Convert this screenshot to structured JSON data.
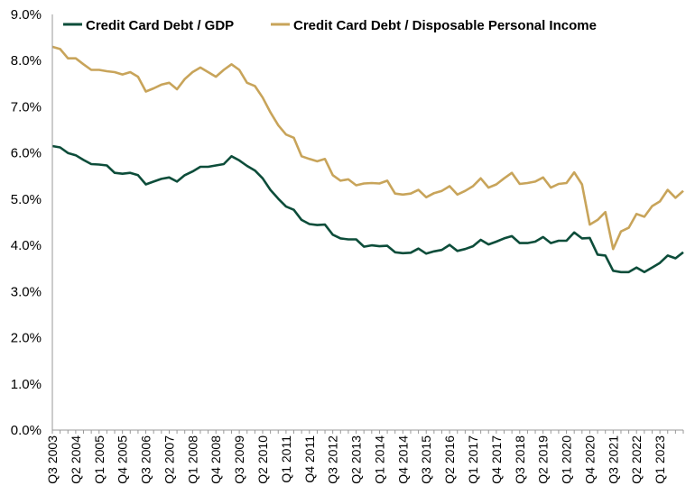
{
  "chart_data": {
    "type": "line",
    "title": "",
    "xlabel": "",
    "ylabel": "",
    "ylim": [
      0,
      9
    ],
    "y_ticks": [
      "0.0%",
      "1.0%",
      "2.0%",
      "3.0%",
      "4.0%",
      "5.0%",
      "6.0%",
      "7.0%",
      "8.0%",
      "9.0%"
    ],
    "x_start": "Q3 2003",
    "x_ticks": [
      {
        "q": 0,
        "label": "Q3 2003"
      },
      {
        "q": 3,
        "label": "Q2 2004"
      },
      {
        "q": 6,
        "label": "Q1 2005"
      },
      {
        "q": 9,
        "label": "Q4 2005"
      },
      {
        "q": 12,
        "label": "Q3 2006"
      },
      {
        "q": 15,
        "label": "Q2 2007"
      },
      {
        "q": 18,
        "label": "Q1 2008"
      },
      {
        "q": 21,
        "label": "Q4 2008"
      },
      {
        "q": 24,
        "label": "Q3 2009"
      },
      {
        "q": 27,
        "label": "Q2 2010"
      },
      {
        "q": 30,
        "label": "Q1 2011"
      },
      {
        "q": 33,
        "label": "Q4 2011"
      },
      {
        "q": 36,
        "label": "Q3 2012"
      },
      {
        "q": 39,
        "label": "Q2 2013"
      },
      {
        "q": 42,
        "label": "Q1 2014"
      },
      {
        "q": 45,
        "label": "Q4 2014"
      },
      {
        "q": 48,
        "label": "Q3 2015"
      },
      {
        "q": 51,
        "label": "Q2 2016"
      },
      {
        "q": 54,
        "label": "Q1 2017"
      },
      {
        "q": 57,
        "label": "Q4 2017"
      },
      {
        "q": 60,
        "label": "Q3 2018"
      },
      {
        "q": 63,
        "label": "Q2 2019"
      },
      {
        "q": 66,
        "label": "Q1 2020"
      },
      {
        "q": 69,
        "label": "Q4 2020"
      },
      {
        "q": 72,
        "label": "Q3 2021"
      },
      {
        "q": 75,
        "label": "Q2 2022"
      },
      {
        "q": 78,
        "label": "Q1 2023"
      }
    ],
    "legend": {
      "placement": "top"
    },
    "grid": false,
    "series": [
      {
        "name": "Credit Card Debt / GDP",
        "color": "#0d4d3a",
        "values": [
          6.15,
          6.12,
          6.0,
          5.95,
          5.85,
          5.76,
          5.75,
          5.73,
          5.57,
          5.55,
          5.57,
          5.52,
          5.32,
          5.38,
          5.44,
          5.47,
          5.38,
          5.52,
          5.6,
          5.7,
          5.7,
          5.73,
          5.76,
          5.93,
          5.84,
          5.72,
          5.62,
          5.45,
          5.2,
          5.01,
          4.84,
          4.77,
          4.55,
          4.46,
          4.44,
          4.45,
          4.23,
          4.15,
          4.13,
          4.13,
          3.97,
          4.0,
          3.98,
          3.99,
          3.85,
          3.83,
          3.84,
          3.93,
          3.82,
          3.87,
          3.9,
          4.01,
          3.88,
          3.92,
          3.98,
          4.12,
          4.02,
          4.08,
          4.15,
          4.2,
          4.05,
          4.05,
          4.08,
          4.18,
          4.05,
          4.1,
          4.1,
          4.28,
          4.15,
          4.16,
          3.8,
          3.78,
          3.45,
          3.42,
          3.42,
          3.52,
          3.42,
          3.52,
          3.62,
          3.78,
          3.72,
          3.85
        ]
      },
      {
        "name": "Credit Card Debt / Disposable Personal Income",
        "color": "#c8a45a",
        "values": [
          8.3,
          8.25,
          8.05,
          8.05,
          7.92,
          7.8,
          7.8,
          7.77,
          7.75,
          7.7,
          7.75,
          7.65,
          7.33,
          7.4,
          7.48,
          7.52,
          7.38,
          7.6,
          7.75,
          7.85,
          7.75,
          7.65,
          7.8,
          7.92,
          7.8,
          7.52,
          7.45,
          7.2,
          6.88,
          6.6,
          6.4,
          6.33,
          5.93,
          5.87,
          5.82,
          5.87,
          5.52,
          5.4,
          5.43,
          5.3,
          5.34,
          5.35,
          5.34,
          5.4,
          5.12,
          5.1,
          5.12,
          5.2,
          5.04,
          5.13,
          5.18,
          5.28,
          5.1,
          5.18,
          5.28,
          5.45,
          5.25,
          5.32,
          5.45,
          5.57,
          5.33,
          5.35,
          5.38,
          5.47,
          5.25,
          5.33,
          5.35,
          5.58,
          5.32,
          4.45,
          4.55,
          4.72,
          3.92,
          4.3,
          4.38,
          4.68,
          4.62,
          4.85,
          4.95,
          5.2,
          5.03,
          5.18
        ]
      }
    ]
  }
}
